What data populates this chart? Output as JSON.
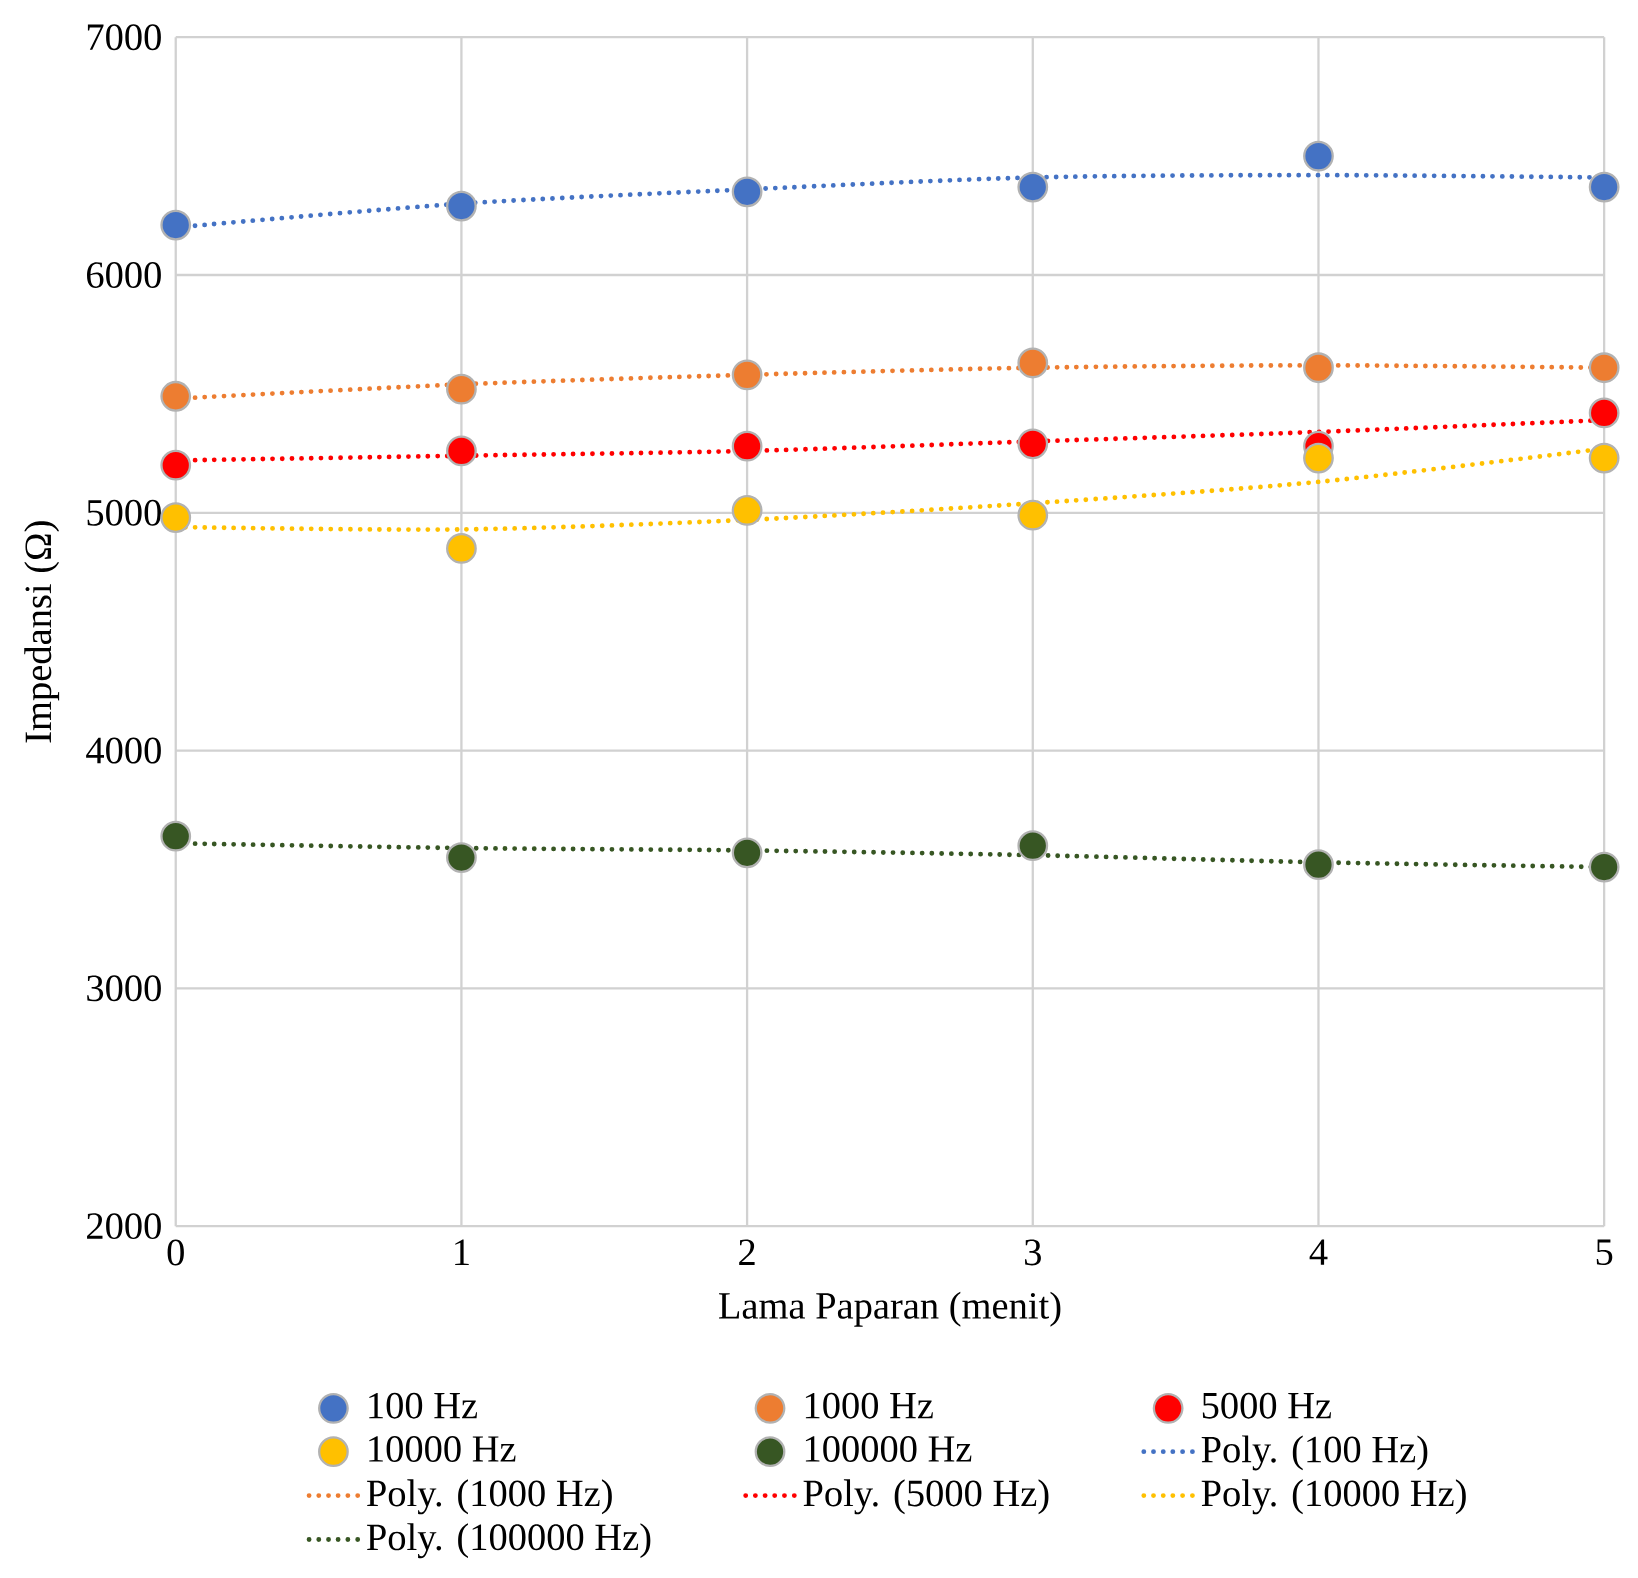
{
  "chart_data": {
    "type": "scatter",
    "xlabel": "Lama Paparan (menit)",
    "ylabel": "Impedansi (Ω)",
    "x": [
      0,
      1,
      2,
      3,
      4,
      5
    ],
    "xlim": [
      0,
      5
    ],
    "xticks": [
      0,
      1,
      2,
      3,
      4,
      5
    ],
    "ylim": [
      2000,
      7000
    ],
    "yticks": [
      2000,
      3000,
      4000,
      5000,
      6000,
      7000
    ],
    "grid": true,
    "legend": "bottom",
    "series": [
      {
        "name": "100 Hz",
        "marker": "circle",
        "color": "#4472c4",
        "values": [
          6210,
          6290,
          6350,
          6370,
          6500,
          6370
        ]
      },
      {
        "name": "1000 Hz",
        "marker": "circle",
        "color": "#ed7d31",
        "values": [
          5490,
          5520,
          5580,
          5630,
          5610,
          5610
        ]
      },
      {
        "name": "5000 Hz",
        "marker": "circle",
        "color": "#ff0000",
        "values": [
          5200,
          5260,
          5280,
          5290,
          5280,
          5420
        ]
      },
      {
        "name": "10000 Hz",
        "marker": "circle",
        "color": "#ffc000",
        "values": [
          4980,
          4850,
          5010,
          4990,
          5230,
          5230
        ]
      },
      {
        "name": "100000 Hz",
        "marker": "circle",
        "color": "#375623",
        "values": [
          3640,
          3550,
          3570,
          3600,
          3520,
          3510
        ]
      },
      {
        "name": "Poly. (100 Hz)",
        "type": "line",
        "marker": "none",
        "line_style": "dotted",
        "color": "#4472c4",
        "values": [
          6200,
          6300,
          6360,
          6410,
          6420,
          6410
        ]
      },
      {
        "name": "Poly. (1000 Hz)",
        "type": "line",
        "marker": "none",
        "line_style": "dotted",
        "color": "#ed7d31",
        "values": [
          5480,
          5540,
          5580,
          5610,
          5620,
          5610
        ]
      },
      {
        "name": "Poly. (5000 Hz)",
        "type": "line",
        "marker": "none",
        "line_style": "dotted",
        "color": "#ff0000",
        "values": [
          5220,
          5240,
          5260,
          5300,
          5340,
          5390
        ]
      },
      {
        "name": "Poly. (10000 Hz)",
        "type": "line",
        "marker": "none",
        "line_style": "dotted",
        "color": "#ffc000",
        "values": [
          4940,
          4930,
          4970,
          5040,
          5130,
          5270
        ]
      },
      {
        "name": "Poly. (100000 Hz)",
        "type": "line",
        "marker": "none",
        "line_style": "dotted",
        "color": "#375623",
        "values": [
          3610,
          3590,
          3580,
          3560,
          3530,
          3510
        ]
      }
    ]
  }
}
